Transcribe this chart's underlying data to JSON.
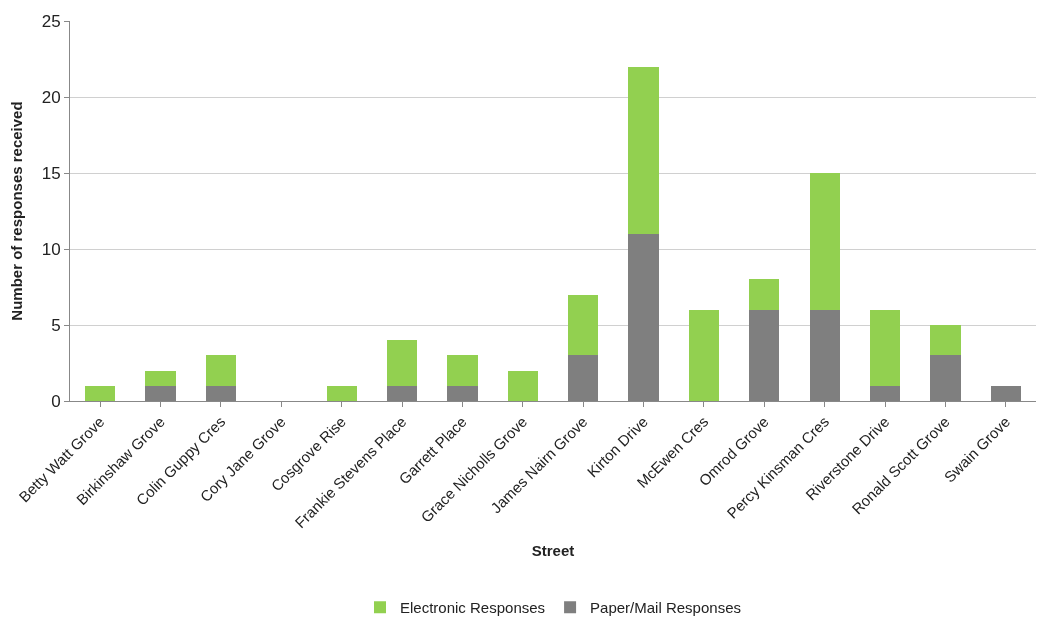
{
  "chart_data": {
    "type": "bar",
    "stacked": true,
    "xlabel": "Street",
    "ylabel": "Number of responses received",
    "categories": [
      "Betty Watt Grove",
      "Birkinshaw Grove",
      "Colin Guppy Cres",
      "Cory Jane Grove",
      "Cosgrove Rise",
      "Frankie Stevens Place",
      "Garrett Place",
      "Grace Nicholls Grove",
      "James Nairn Grove",
      "Kirton Drive",
      "McEwen Cres",
      "Omrod Grove",
      "Percy Kinsman Cres",
      "Riverstone Drive",
      "Ronald Scott Grove",
      "Swain Grove"
    ],
    "series": [
      {
        "name": "Paper/Mail Responses",
        "color": "#7f7f7f",
        "values": [
          0,
          1,
          1,
          0,
          0,
          1,
          1,
          0,
          3,
          11,
          0,
          6,
          6,
          1,
          3,
          1
        ]
      },
      {
        "name": "Electronic Responses",
        "color": "#92d050",
        "values": [
          1,
          1,
          2,
          0,
          1,
          3,
          2,
          2,
          4,
          11,
          6,
          2,
          9,
          5,
          2,
          0
        ]
      }
    ],
    "ylim": [
      0,
      25
    ],
    "yticks": [
      0,
      5,
      10,
      15,
      20,
      25
    ],
    "grid": "y",
    "legend": "bottom"
  }
}
